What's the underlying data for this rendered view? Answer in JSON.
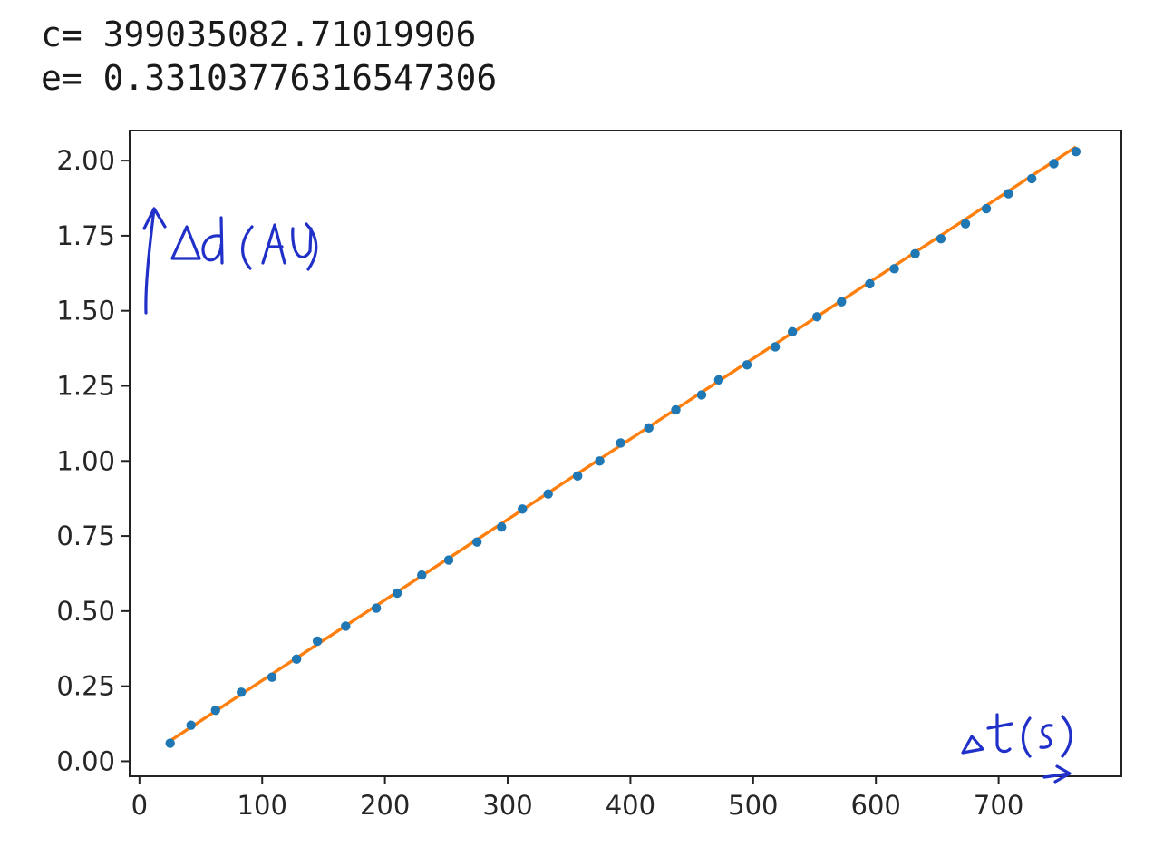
{
  "console": {
    "line1": "c= 399035082.71019906",
    "line2": "e= 0.33103776316547306"
  },
  "annotations": {
    "y_axis_note": "↑Δd (AU)",
    "x_axis_note": "Δt(s) →"
  },
  "colors": {
    "points": "#1f77b4",
    "fit_line": "#ff7f0e",
    "annotation_ink": "#2030c8"
  },
  "chart_data": {
    "type": "scatter",
    "title": "",
    "xlabel": "",
    "ylabel": "",
    "xlim": [
      -8,
      800
    ],
    "ylim": [
      -0.05,
      2.1
    ],
    "xticks": [
      0,
      100,
      200,
      300,
      400,
      500,
      600,
      700
    ],
    "yticks": [
      0.0,
      0.25,
      0.5,
      0.75,
      1.0,
      1.25,
      1.5,
      1.75,
      2.0
    ],
    "xtick_labels": [
      "0",
      "100",
      "200",
      "300",
      "400",
      "500",
      "600",
      "700"
    ],
    "ytick_labels": [
      "0.00",
      "0.25",
      "0.50",
      "0.75",
      "1.00",
      "1.25",
      "1.50",
      "1.75",
      "2.00"
    ],
    "grid": false,
    "series": [
      {
        "kind": "points",
        "x": [
          25,
          42,
          62,
          83,
          108,
          128,
          145,
          168,
          193,
          210,
          230,
          252,
          275,
          295,
          312,
          333,
          357,
          375,
          392,
          415,
          437,
          458,
          472,
          495,
          518,
          532,
          552,
          572,
          595,
          615,
          632,
          653,
          673,
          690,
          708,
          727,
          745,
          763
        ],
        "y": [
          0.06,
          0.12,
          0.17,
          0.23,
          0.28,
          0.34,
          0.4,
          0.45,
          0.51,
          0.56,
          0.62,
          0.67,
          0.73,
          0.78,
          0.84,
          0.89,
          0.95,
          1.0,
          1.06,
          1.11,
          1.17,
          1.22,
          1.27,
          1.32,
          1.38,
          1.43,
          1.48,
          1.53,
          1.59,
          1.64,
          1.69,
          1.74,
          1.79,
          1.84,
          1.89,
          1.94,
          1.99,
          2.03
        ]
      },
      {
        "kind": "fit",
        "x": [
          25,
          763
        ],
        "y": [
          0.068,
          2.046
        ]
      }
    ]
  }
}
